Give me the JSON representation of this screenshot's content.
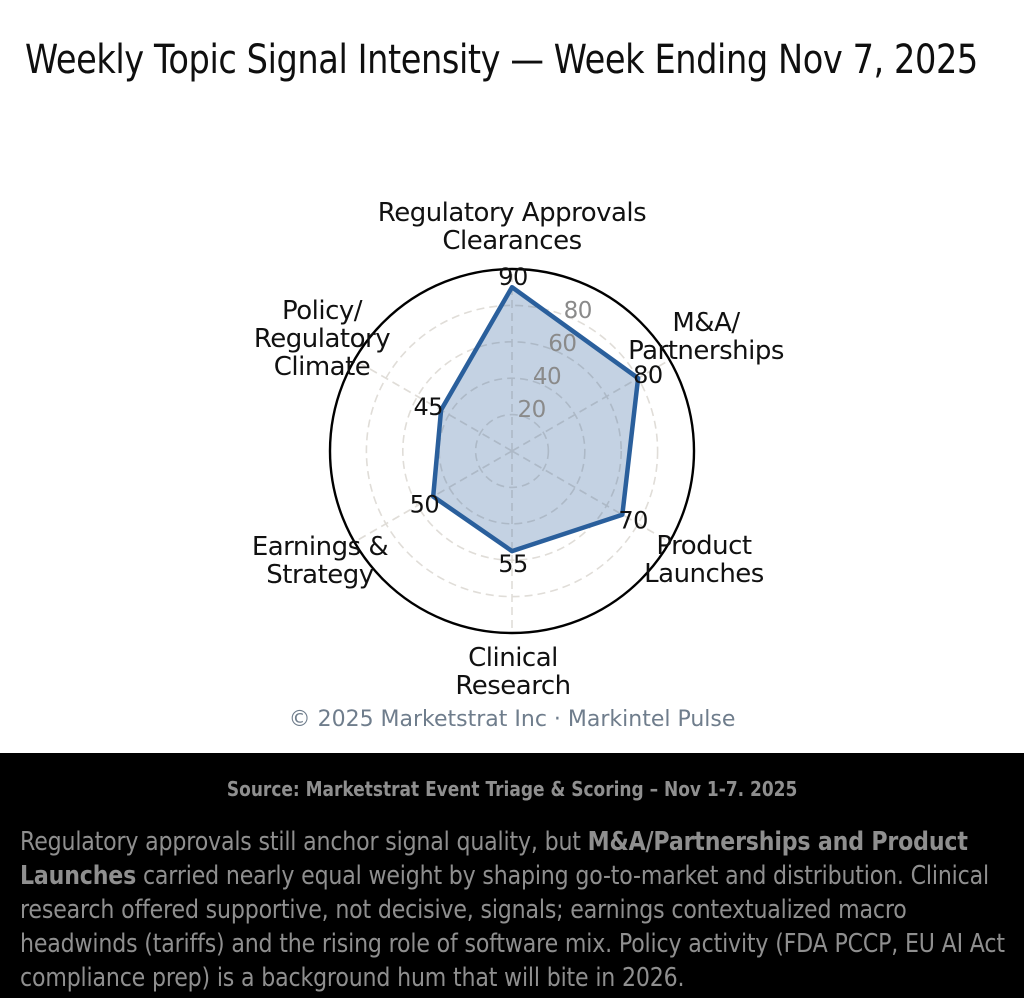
{
  "chart_data": {
    "type": "radar",
    "title": "Weekly Topic Signal Intensity — Week Ending Nov 7, 2025",
    "axes": [
      {
        "label": "Regulatory Approvals\nClearances",
        "value": 90
      },
      {
        "label": "M&A/\nPartnerships",
        "value": 80
      },
      {
        "label": "Product\nLaunches",
        "value": 70
      },
      {
        "label": "Clinical\nResearch",
        "value": 55
      },
      {
        "label": "Earnings &\nStrategy",
        "value": 50
      },
      {
        "label": "Policy/\nRegulatory\nClimate",
        "value": 45
      }
    ],
    "radial_ticks": [
      20,
      40,
      60,
      80
    ],
    "rmax": 100,
    "grid": true,
    "legend": "none"
  },
  "colors": {
    "series_line": "#2a5f9c",
    "series_fill": "rgba(42,95,156,0.28)",
    "grid_line": "#e0ddd8",
    "outer_ring": "#000000",
    "tick_text": "#8a8a8a",
    "axis_text": "#111111",
    "title_text": "#0f0f0f",
    "copyright_text": "#6f7d8c",
    "footer_bg": "#000000",
    "footer_text": "#8f8f8f"
  },
  "copyright": "© 2025 Marketstrat Inc · Markintel Pulse",
  "footer": {
    "source": "Source: Marketstrat Event Triage & Scoring – Nov 1-7. 2025",
    "commentary": {
      "lead": "Regulatory approvals still anchor signal quality, but ",
      "bold": "M&A/Partnerships and Product Launches",
      "rest": " carried nearly equal weight by shaping go-to-market and distribution. Clinical research offered supportive, not decisive, signals; earnings contextualized macro headwinds (tariffs) and the rising role of software mix. Policy activity (FDA PCCP, EU AI Act compliance prep) is a background hum that will bite in 2026."
    }
  }
}
